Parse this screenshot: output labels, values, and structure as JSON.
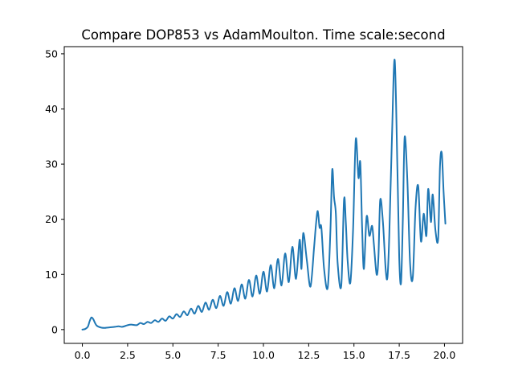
{
  "chart_data": {
    "type": "line",
    "title": "Compare DOP853 vs AdamMoulton. Time scale:second",
    "xlabel": "",
    "ylabel": "",
    "xlim": [
      -1.0,
      21.0
    ],
    "ylim": [
      -2.5,
      51.3
    ],
    "x_ticks": [
      0.0,
      2.5,
      5.0,
      7.5,
      10.0,
      12.5,
      15.0,
      17.5,
      20.0
    ],
    "x_tick_labels": [
      "0.0",
      "2.5",
      "5.0",
      "7.5",
      "10.0",
      "12.5",
      "15.0",
      "17.5",
      "20.0"
    ],
    "y_ticks": [
      0,
      10,
      20,
      30,
      40,
      50
    ],
    "y_tick_labels": [
      "0",
      "10",
      "20",
      "30",
      "40",
      "50"
    ],
    "grid": false,
    "series": [
      {
        "color": "#1f77b4",
        "x": [
          0.0,
          0.15,
          0.3,
          0.4,
          0.5,
          0.6,
          0.7,
          0.8,
          1.0,
          1.2,
          1.5,
          1.8,
          2.0,
          2.2,
          2.5,
          2.7,
          3.0,
          3.2,
          3.4,
          3.6,
          3.8,
          4.0,
          4.2,
          4.4,
          4.6,
          4.8,
          5.0,
          5.2,
          5.4,
          5.6,
          5.8,
          6.0,
          6.2,
          6.4,
          6.6,
          6.8,
          7.0,
          7.2,
          7.4,
          7.6,
          7.8,
          8.0,
          8.2,
          8.4,
          8.6,
          8.8,
          9.0,
          9.2,
          9.4,
          9.6,
          9.8,
          10.0,
          10.2,
          10.4,
          10.6,
          10.8,
          11.0,
          11.2,
          11.4,
          11.6,
          11.8,
          12.0,
          12.1,
          12.2,
          12.4,
          12.6,
          12.8,
          12.9,
          13.0,
          13.1,
          13.2,
          13.35,
          13.55,
          13.7,
          13.8,
          13.9,
          14.0,
          14.1,
          14.3,
          14.45,
          14.55,
          14.65,
          14.8,
          14.95,
          15.1,
          15.25,
          15.35,
          15.45,
          15.55,
          15.7,
          15.85,
          16.0,
          16.1,
          16.25,
          16.35,
          16.45,
          16.6,
          16.75,
          16.85,
          16.95,
          17.1,
          17.25,
          17.4,
          17.5,
          17.6,
          17.7,
          17.8,
          17.95,
          18.1,
          18.25,
          18.4,
          18.55,
          18.7,
          18.85,
          19.0,
          19.1,
          19.25,
          19.35,
          19.5,
          19.65,
          19.75,
          19.85,
          19.95,
          20.05
        ],
        "y": [
          0.0,
          0.1,
          0.5,
          1.5,
          2.2,
          1.9,
          1.2,
          0.7,
          0.4,
          0.3,
          0.4,
          0.5,
          0.6,
          0.5,
          0.8,
          0.9,
          0.8,
          1.2,
          1.0,
          1.4,
          1.2,
          1.7,
          1.4,
          2.0,
          1.6,
          2.4,
          2.0,
          2.8,
          2.3,
          3.3,
          2.6,
          3.8,
          2.9,
          4.3,
          3.2,
          4.9,
          3.6,
          5.4,
          3.9,
          6.1,
          4.3,
          6.8,
          4.7,
          7.5,
          5.2,
          8.2,
          5.6,
          9.0,
          6.0,
          9.8,
          6.5,
          10.5,
          6.9,
          11.7,
          7.5,
          12.8,
          8.0,
          13.8,
          8.6,
          15.0,
          9.2,
          16.3,
          11.0,
          17.5,
          12.5,
          7.8,
          15.0,
          19.0,
          21.5,
          18.5,
          18.5,
          11.0,
          7.6,
          18.0,
          29.0,
          24.0,
          21.0,
          12.0,
          8.0,
          23.5,
          19.5,
          12.5,
          8.5,
          18.0,
          34.5,
          27.5,
          30.3,
          18.5,
          11.0,
          20.5,
          17.0,
          18.8,
          15.5,
          10.0,
          13.0,
          23.5,
          19.5,
          11.0,
          9.5,
          17.0,
          35.0,
          48.9,
          29.0,
          13.0,
          8.5,
          20.0,
          34.9,
          27.0,
          12.0,
          9.5,
          22.0,
          26.0,
          16.0,
          21.0,
          17.0,
          25.5,
          19.5,
          24.5,
          18.0,
          16.5,
          29.5,
          32.0,
          25.0,
          19.2
        ]
      }
    ]
  }
}
